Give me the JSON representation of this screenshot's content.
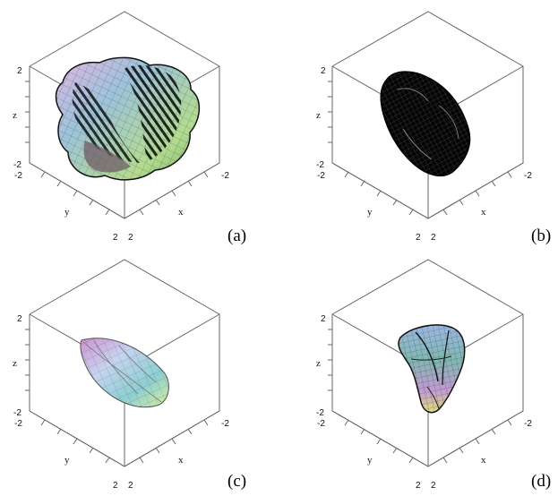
{
  "panels": [
    {
      "caption": "(a)",
      "surface": "colorful lumpy surface with dark cut bands",
      "axes": {
        "x": "x",
        "y": "y",
        "z": "z"
      },
      "ticks": {
        "z_top": "2",
        "z_bottom": "-2",
        "y_top": "-2",
        "x_right": "-2",
        "y_bottom": "2",
        "x_bottom": "2"
      }
    },
    {
      "caption": "(b)",
      "surface": "dark dense mesh surface",
      "axes": {
        "x": "x",
        "y": "y",
        "z": "z"
      },
      "ticks": {
        "z_top": "2",
        "z_bottom": "-2",
        "y_top": "-2",
        "x_right": "-2",
        "y_bottom": "2",
        "x_bottom": "2"
      }
    },
    {
      "caption": "(c)",
      "surface": "smooth lens shaped surface",
      "axes": {
        "x": "x",
        "y": "y",
        "z": "z"
      },
      "ticks": {
        "z_top": "2",
        "z_bottom": "-2",
        "y_top": "-2",
        "x_right": "-2",
        "y_bottom": "2",
        "x_bottom": "2"
      }
    },
    {
      "caption": "(d)",
      "surface": "small vertical teardrop surface",
      "axes": {
        "x": "x",
        "y": "y",
        "z": "z"
      },
      "ticks": {
        "z_top": "2",
        "z_bottom": "-2",
        "y_top": "-2",
        "x_right": "-2",
        "y_bottom": "2",
        "x_bottom": "2"
      }
    }
  ],
  "colors": {
    "axis": "#555555",
    "mesh_dark": "#111111",
    "pink": "#d9a6d8",
    "blue": "#9fc3d8",
    "green": "#b5d88b",
    "teal": "#4f8d86"
  }
}
